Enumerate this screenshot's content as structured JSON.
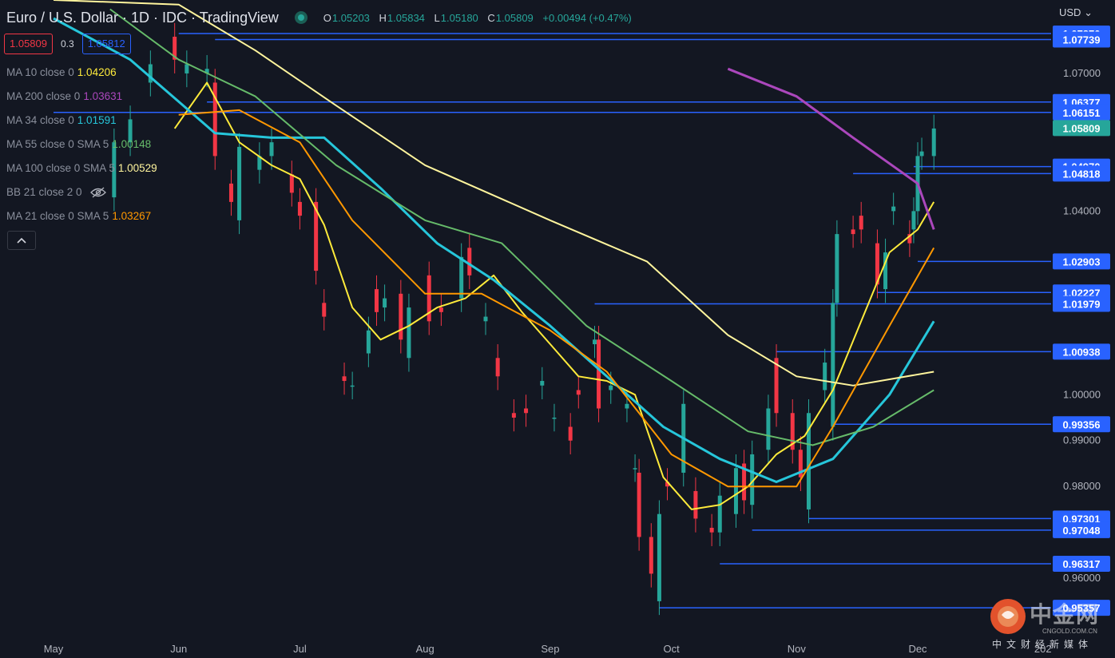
{
  "header": {
    "title": "Euro / U.S. Dollar · 1D · IDC · TradingView",
    "open_key": "O",
    "open": "1.05203",
    "high_key": "H",
    "high": "1.05834",
    "low_key": "L",
    "low": "1.05180",
    "close_key": "C",
    "close": "1.05809",
    "change": "+0.00494 (+0.47%)"
  },
  "price_row": {
    "bid": "1.05809",
    "spread": "0.3",
    "ask": "1.05812"
  },
  "legend": [
    {
      "name": "MA 10 close 0",
      "value": "1.04206",
      "color": "#ffeb3b"
    },
    {
      "name": "MA 200 close 0",
      "value": "1.03631",
      "color": "#ab47bc"
    },
    {
      "name": "MA 34 close 0",
      "value": "1.01591",
      "color": "#26c6da"
    },
    {
      "name": "MA 55 close 0 SMA 5",
      "value": "1.00148",
      "color": "#66bb6a"
    },
    {
      "name": "MA 100 close 0 SMA 5",
      "value": "1.00529",
      "color": "#fff59d"
    },
    {
      "name": "BB 21 close 2 0",
      "value": "",
      "color": "#8a8f9c"
    },
    {
      "name": "MA 21 close 0 SMA 5",
      "value": "1.03267",
      "color": "#ff9800"
    }
  ],
  "currency": "USD",
  "watermark": {
    "brand": "中金网",
    "domain": "CNGOLD.COM.CN",
    "tagline": "中文财经新媒体"
  },
  "colors": {
    "background": "#131722",
    "up": "#26a69a",
    "down": "#f23645",
    "level": "#2962ff",
    "last_price": "#26a69a"
  },
  "chart_data": {
    "type": "candlestick",
    "title": "Euro / U.S. Dollar · 1D · IDC · TradingView",
    "ylim": [
      0.9475,
      1.086
    ],
    "y_ticks": [
      "1.07000",
      "1.04000",
      "1.00000",
      "0.99000",
      "0.98000",
      "0.96000"
    ],
    "x_ticks": [
      "May",
      "Jun",
      "Jul",
      "Aug",
      "Sep",
      "Oct",
      "Nov",
      "Dec",
      "202"
    ],
    "x_tick_dates": [
      "2022-05-01",
      "2022-06-01",
      "2022-07-01",
      "2022-08-01",
      "2022-09-01",
      "2022-10-01",
      "2022-11-01",
      "2022-12-01",
      "2023-01-01"
    ],
    "candles": [
      {
        "d": "2022-05-16",
        "o": 1.043,
        "c": 1.055
      },
      {
        "d": "2022-05-20",
        "o": 1.055,
        "c": 1.06
      },
      {
        "d": "2022-05-25",
        "o": 1.068,
        "c": 1.072
      },
      {
        "d": "2022-05-31",
        "o": 1.078,
        "c": 1.073
      },
      {
        "d": "2022-06-03",
        "o": 1.07,
        "c": 1.072
      },
      {
        "d": "2022-06-08",
        "o": 1.07,
        "c": 1.071
      },
      {
        "d": "2022-06-10",
        "o": 1.068,
        "c": 1.052
      },
      {
        "d": "2022-06-14",
        "o": 1.046,
        "c": 1.042
      },
      {
        "d": "2022-06-16",
        "o": 1.038,
        "c": 1.054
      },
      {
        "d": "2022-06-21",
        "o": 1.049,
        "c": 1.052
      },
      {
        "d": "2022-06-24",
        "o": 1.052,
        "c": 1.055
      },
      {
        "d": "2022-06-29",
        "o": 1.048,
        "c": 1.044
      },
      {
        "d": "2022-07-01",
        "o": 1.042,
        "c": 1.039
      },
      {
        "d": "2022-07-05",
        "o": 1.042,
        "c": 1.027
      },
      {
        "d": "2022-07-07",
        "o": 1.02,
        "c": 1.017
      },
      {
        "d": "2022-07-12",
        "o": 1.004,
        "c": 1.003
      },
      {
        "d": "2022-07-14",
        "o": 1.002,
        "c": 1.002
      },
      {
        "d": "2022-07-18",
        "o": 1.009,
        "c": 1.014
      },
      {
        "d": "2022-07-20",
        "o": 1.023,
        "c": 1.018
      },
      {
        "d": "2022-07-22",
        "o": 1.019,
        "c": 1.021
      },
      {
        "d": "2022-07-26",
        "o": 1.022,
        "c": 1.012
      },
      {
        "d": "2022-07-28",
        "o": 1.008,
        "c": 1.019
      },
      {
        "d": "2022-08-02",
        "o": 1.026,
        "c": 1.016
      },
      {
        "d": "2022-08-05",
        "o": 1.019,
        "c": 1.018
      },
      {
        "d": "2022-08-10",
        "o": 1.021,
        "c": 1.03
      },
      {
        "d": "2022-08-12",
        "o": 1.032,
        "c": 1.026
      },
      {
        "d": "2022-08-16",
        "o": 1.016,
        "c": 1.017
      },
      {
        "d": "2022-08-19",
        "o": 1.008,
        "c": 1.004
      },
      {
        "d": "2022-08-23",
        "o": 0.996,
        "c": 0.995
      },
      {
        "d": "2022-08-26",
        "o": 0.997,
        "c": 0.996
      },
      {
        "d": "2022-08-30",
        "o": 1.002,
        "c": 1.003
      },
      {
        "d": "2022-09-02",
        "o": 0.995,
        "c": 0.995
      },
      {
        "d": "2022-09-06",
        "o": 0.993,
        "c": 0.99
      },
      {
        "d": "2022-09-08",
        "o": 1.001,
        "c": 1.0
      },
      {
        "d": "2022-09-12",
        "o": 1.011,
        "c": 1.012
      },
      {
        "d": "2022-09-13",
        "o": 1.012,
        "c": 0.997
      },
      {
        "d": "2022-09-16",
        "o": 1.001,
        "c": 1.002
      },
      {
        "d": "2022-09-20",
        "o": 0.997,
        "c": 0.998
      },
      {
        "d": "2022-09-22",
        "o": 0.984,
        "c": 0.984
      },
      {
        "d": "2022-09-23",
        "o": 0.983,
        "c": 0.969
      },
      {
        "d": "2022-09-26",
        "o": 0.969,
        "c": 0.961
      },
      {
        "d": "2022-09-28",
        "o": 0.955,
        "c": 0.974
      },
      {
        "d": "2022-09-30",
        "o": 0.981,
        "c": 0.98
      },
      {
        "d": "2022-10-04",
        "o": 0.983,
        "c": 0.998
      },
      {
        "d": "2022-10-07",
        "o": 0.979,
        "c": 0.973
      },
      {
        "d": "2022-10-11",
        "o": 0.971,
        "c": 0.97
      },
      {
        "d": "2022-10-13",
        "o": 0.97,
        "c": 0.978
      },
      {
        "d": "2022-10-17",
        "o": 0.974,
        "c": 0.984
      },
      {
        "d": "2022-10-19",
        "o": 0.985,
        "c": 0.977
      },
      {
        "d": "2022-10-21",
        "o": 0.976,
        "c": 0.987
      },
      {
        "d": "2022-10-25",
        "o": 0.988,
        "c": 0.997
      },
      {
        "d": "2022-10-27",
        "o": 1.008,
        "c": 0.996
      },
      {
        "d": "2022-10-31",
        "o": 0.996,
        "c": 0.988
      },
      {
        "d": "2022-11-02",
        "o": 0.988,
        "c": 0.982
      },
      {
        "d": "2022-11-04",
        "o": 0.975,
        "c": 0.996
      },
      {
        "d": "2022-11-08",
        "o": 1.001,
        "c": 1.007
      },
      {
        "d": "2022-11-10",
        "o": 0.993,
        "c": 1.02
      },
      {
        "d": "2022-11-11",
        "o": 1.02,
        "c": 1.035
      },
      {
        "d": "2022-11-15",
        "o": 1.036,
        "c": 1.035
      },
      {
        "d": "2022-11-17",
        "o": 1.039,
        "c": 1.036
      },
      {
        "d": "2022-11-21",
        "o": 1.033,
        "c": 1.024
      },
      {
        "d": "2022-11-23",
        "o": 1.023,
        "c": 1.031
      },
      {
        "d": "2022-11-25",
        "o": 1.04,
        "c": 1.041
      },
      {
        "d": "2022-11-29",
        "o": 1.035,
        "c": 1.033
      },
      {
        "d": "2022-11-30",
        "o": 1.036,
        "c": 1.04
      },
      {
        "d": "2022-12-01",
        "o": 1.04,
        "c": 1.052
      },
      {
        "d": "2022-12-02",
        "o": 1.052,
        "c": 1.053
      },
      {
        "d": "2022-12-05",
        "o": 1.052,
        "c": 1.058
      }
    ],
    "moving_averages": [
      {
        "name": "MA 10 close 0",
        "color": "#ffeb3b",
        "points": [
          [
            "2022-05-31",
            1.058
          ],
          [
            "2022-06-08",
            1.068
          ],
          [
            "2022-06-16",
            1.055
          ],
          [
            "2022-06-24",
            1.05
          ],
          [
            "2022-07-01",
            1.047
          ],
          [
            "2022-07-07",
            1.037
          ],
          [
            "2022-07-14",
            1.019
          ],
          [
            "2022-07-21",
            1.012
          ],
          [
            "2022-07-28",
            1.015
          ],
          [
            "2022-08-04",
            1.019
          ],
          [
            "2022-08-11",
            1.021
          ],
          [
            "2022-08-18",
            1.026
          ],
          [
            "2022-08-25",
            1.018
          ],
          [
            "2022-09-01",
            1.011
          ],
          [
            "2022-09-08",
            1.004
          ],
          [
            "2022-09-15",
            1.003
          ],
          [
            "2022-09-22",
            1.0
          ],
          [
            "2022-09-29",
            0.982
          ],
          [
            "2022-10-06",
            0.975
          ],
          [
            "2022-10-13",
            0.976
          ],
          [
            "2022-10-20",
            0.98
          ],
          [
            "2022-10-27",
            0.987
          ],
          [
            "2022-11-03",
            0.991
          ],
          [
            "2022-11-10",
            1.001
          ],
          [
            "2022-11-17",
            1.016
          ],
          [
            "2022-11-24",
            1.031
          ],
          [
            "2022-12-01",
            1.036
          ],
          [
            "2022-12-05",
            1.042
          ]
        ]
      },
      {
        "name": "MA 200 close 0",
        "color": "#ab47bc",
        "points": [
          [
            "2022-10-15",
            1.071
          ],
          [
            "2022-11-01",
            1.065
          ],
          [
            "2022-11-15",
            1.056
          ],
          [
            "2022-12-01",
            1.046
          ],
          [
            "2022-12-05",
            1.036
          ]
        ]
      },
      {
        "name": "MA 34 close 0",
        "color": "#26c6da",
        "points": [
          [
            "2022-05-01",
            1.082
          ],
          [
            "2022-05-20",
            1.073
          ],
          [
            "2022-06-10",
            1.057
          ],
          [
            "2022-06-24",
            1.056
          ],
          [
            "2022-07-07",
            1.056
          ],
          [
            "2022-07-21",
            1.045
          ],
          [
            "2022-08-04",
            1.033
          ],
          [
            "2022-08-18",
            1.025
          ],
          [
            "2022-09-01",
            1.015
          ],
          [
            "2022-09-15",
            1.004
          ],
          [
            "2022-09-29",
            0.993
          ],
          [
            "2022-10-13",
            0.986
          ],
          [
            "2022-10-27",
            0.981
          ],
          [
            "2022-11-10",
            0.986
          ],
          [
            "2022-11-24",
            1.0
          ],
          [
            "2022-12-05",
            1.016
          ]
        ]
      },
      {
        "name": "MA 55 close 0 SMA 5",
        "color": "#66bb6a",
        "points": [
          [
            "2022-05-15",
            1.084
          ],
          [
            "2022-06-01",
            1.073
          ],
          [
            "2022-06-20",
            1.065
          ],
          [
            "2022-07-10",
            1.05
          ],
          [
            "2022-08-01",
            1.038
          ],
          [
            "2022-08-20",
            1.033
          ],
          [
            "2022-09-10",
            1.015
          ],
          [
            "2022-10-01",
            1.003
          ],
          [
            "2022-10-20",
            0.992
          ],
          [
            "2022-11-05",
            0.989
          ],
          [
            "2022-11-20",
            0.993
          ],
          [
            "2022-12-05",
            1.001
          ]
        ]
      },
      {
        "name": "MA 100 close 0 SMA 5",
        "color": "#fff59d",
        "points": [
          [
            "2022-05-01",
            1.086
          ],
          [
            "2022-06-01",
            1.085
          ],
          [
            "2022-06-20",
            1.075
          ],
          [
            "2022-07-10",
            1.063
          ],
          [
            "2022-08-01",
            1.05
          ],
          [
            "2022-09-01",
            1.038
          ],
          [
            "2022-09-25",
            1.029
          ],
          [
            "2022-10-15",
            1.013
          ],
          [
            "2022-11-01",
            1.004
          ],
          [
            "2022-11-15",
            1.002
          ],
          [
            "2022-12-05",
            1.005
          ]
        ]
      },
      {
        "name": "MA 21 close 0 SMA 5",
        "color": "#ff9800",
        "points": [
          [
            "2022-06-01",
            1.061
          ],
          [
            "2022-06-16",
            1.062
          ],
          [
            "2022-07-01",
            1.055
          ],
          [
            "2022-07-14",
            1.038
          ],
          [
            "2022-08-01",
            1.022
          ],
          [
            "2022-08-15",
            1.022
          ],
          [
            "2022-09-01",
            1.014
          ],
          [
            "2022-09-15",
            1.005
          ],
          [
            "2022-10-01",
            0.987
          ],
          [
            "2022-10-15",
            0.98
          ],
          [
            "2022-11-01",
            0.98
          ],
          [
            "2022-11-10",
            0.993
          ],
          [
            "2022-11-24",
            1.015
          ],
          [
            "2022-12-05",
            1.032
          ]
        ]
      }
    ],
    "horizontal_levels": [
      {
        "value": 1.0787,
        "label": "1.07870",
        "from": "2022-06-01"
      },
      {
        "value": 1.07739,
        "label": "1.07739",
        "from": "2022-06-10"
      },
      {
        "value": 1.06377,
        "label": "1.06377",
        "from": "2022-06-08"
      },
      {
        "value": 1.06151,
        "label": "1.06151",
        "from": "2022-05-01"
      },
      {
        "value": 1.0497,
        "label": "1.04970",
        "from": "2022-11-30"
      },
      {
        "value": 1.04818,
        "label": "1.04818",
        "from": "2022-11-15"
      },
      {
        "value": 1.02903,
        "label": "1.02903",
        "from": "2022-12-01"
      },
      {
        "value": 1.02227,
        "label": "1.02227",
        "from": "2022-11-21"
      },
      {
        "value": 1.01979,
        "label": "1.01979",
        "from": "2022-09-12"
      },
      {
        "value": 1.00938,
        "label": "1.00938",
        "from": "2022-10-27"
      },
      {
        "value": 0.99356,
        "label": "0.99356",
        "from": "2022-11-10"
      },
      {
        "value": 0.97301,
        "label": "0.97301",
        "from": "2022-11-04"
      },
      {
        "value": 0.97048,
        "label": "0.97048",
        "from": "2022-10-21"
      },
      {
        "value": 0.96317,
        "label": "0.96317",
        "from": "2022-10-13"
      },
      {
        "value": 0.95357,
        "label": "0.95357",
        "from": "2022-09-28"
      }
    ],
    "last_price": {
      "value": 1.05809,
      "label": "1.05809"
    }
  }
}
